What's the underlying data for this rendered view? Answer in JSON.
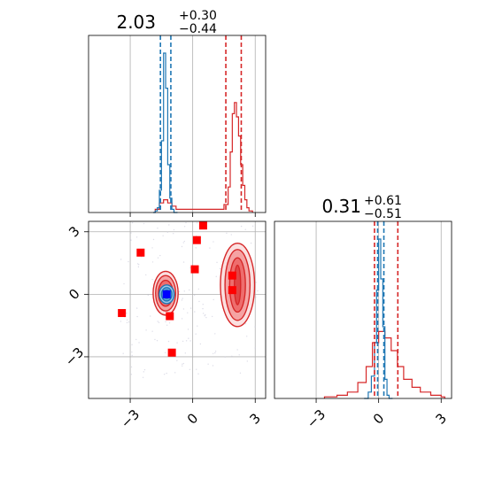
{
  "chart_data": {
    "type": "corner",
    "parameters": 2,
    "grid": true,
    "colors": {
      "reference": "#d62728",
      "posterior": "#1f77b4",
      "markers": "#ff0000"
    },
    "titles": [
      {
        "main": "2.03",
        "sup": "+0.30",
        "sub": "−0.44"
      },
      {
        "main": "0.31",
        "sup": "+0.61",
        "sub": "−0.51"
      }
    ],
    "axis_range": [
      -5,
      3.5
    ],
    "ticks": [
      -3,
      0,
      3
    ],
    "tick_labels": [
      "−3",
      "0",
      "3"
    ],
    "hist1": {
      "reference_quantiles": [
        1.59,
        2.33
      ],
      "posterior_quantiles": [
        -1.55,
        -1.05
      ],
      "posterior_bins": [
        [
          -1.9,
          0.0
        ],
        [
          -1.8,
          0.01
        ],
        [
          -1.7,
          0.03
        ],
        [
          -1.6,
          0.14
        ],
        [
          -1.5,
          0.45
        ],
        [
          -1.4,
          1.0
        ],
        [
          -1.3,
          0.78
        ],
        [
          -1.2,
          0.3
        ],
        [
          -1.1,
          0.09
        ],
        [
          -1.0,
          0.02
        ],
        [
          -0.9,
          0.0
        ]
      ],
      "reference_bins": [
        [
          -1.8,
          0.02
        ],
        [
          -1.6,
          0.06
        ],
        [
          -1.4,
          0.08
        ],
        [
          -1.2,
          0.06
        ],
        [
          -1.0,
          0.04
        ],
        [
          -0.8,
          0.02
        ],
        [
          1.3,
          0.02
        ],
        [
          1.5,
          0.05
        ],
        [
          1.7,
          0.16
        ],
        [
          1.8,
          0.38
        ],
        [
          1.9,
          0.62
        ],
        [
          2.0,
          0.69
        ],
        [
          2.1,
          0.6
        ],
        [
          2.2,
          0.48
        ],
        [
          2.3,
          0.3
        ],
        [
          2.4,
          0.17
        ],
        [
          2.5,
          0.08
        ],
        [
          2.6,
          0.03
        ],
        [
          2.7,
          0.01
        ]
      ]
    },
    "hist2": {
      "reference_quantiles": [
        -0.2,
        0.92
      ],
      "posterior_quantiles": [
        -0.05,
        0.25
      ],
      "posterior_bins": [
        [
          -0.7,
          0.0
        ],
        [
          -0.5,
          0.04
        ],
        [
          -0.35,
          0.14
        ],
        [
          -0.2,
          0.35
        ],
        [
          -0.1,
          0.68
        ],
        [
          0.0,
          1.0
        ],
        [
          0.1,
          0.75
        ],
        [
          0.2,
          0.45
        ],
        [
          0.3,
          0.12
        ],
        [
          0.4,
          0.02
        ],
        [
          0.5,
          0.0
        ]
      ],
      "reference_bins": [
        [
          -2.6,
          0.01
        ],
        [
          -2.0,
          0.02
        ],
        [
          -1.5,
          0.04
        ],
        [
          -1.0,
          0.1
        ],
        [
          -0.6,
          0.2
        ],
        [
          -0.3,
          0.35
        ],
        [
          0.0,
          0.42
        ],
        [
          0.3,
          0.38
        ],
        [
          0.6,
          0.3
        ],
        [
          0.9,
          0.2
        ],
        [
          1.2,
          0.12
        ],
        [
          1.6,
          0.07
        ],
        [
          2.0,
          0.04
        ],
        [
          2.5,
          0.02
        ],
        [
          3.0,
          0.01
        ]
      ]
    },
    "scatter_markers": [
      [
        0.5,
        3.3
      ],
      [
        0.2,
        2.6
      ],
      [
        -2.5,
        2.0
      ],
      [
        0.1,
        1.2
      ],
      [
        1.9,
        0.9
      ],
      [
        1.9,
        0.2
      ],
      [
        -3.4,
        -0.9
      ],
      [
        -1.1,
        -1.05
      ],
      [
        -1.0,
        -2.8
      ]
    ],
    "posterior_point": [
      -1.25,
      0.0
    ],
    "contours": {
      "reference_mode_right": {
        "center": [
          2.15,
          0.45
        ],
        "levels": [
          [
            0.15,
            0.95
          ],
          [
            0.38,
            1.3
          ],
          [
            0.6,
            1.7
          ],
          [
            0.82,
            2.0
          ]
        ]
      },
      "reference_mode_left": {
        "center": [
          -1.3,
          0.05
        ],
        "levels": [
          [
            0.22,
            0.38
          ],
          [
            0.35,
            0.62
          ],
          [
            0.48,
            0.85
          ],
          [
            0.6,
            1.05
          ]
        ]
      },
      "posterior_mode": {
        "center": [
          -1.25,
          0.0
        ],
        "levels": [
          [
            0.15,
            0.2
          ],
          [
            0.25,
            0.32
          ],
          [
            0.36,
            0.45
          ]
        ]
      }
    }
  }
}
